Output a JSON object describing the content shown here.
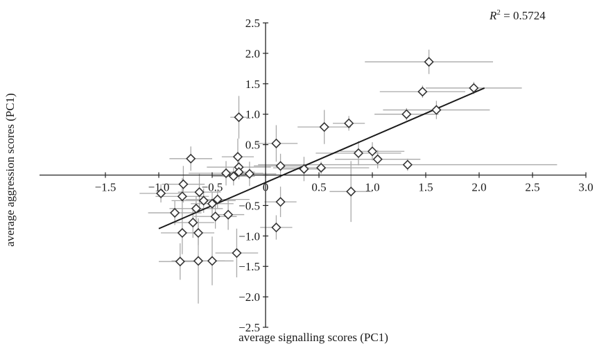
{
  "chart_data": {
    "type": "scatter",
    "title": "",
    "xlabel": "average signalling scores (PC1)",
    "ylabel": "average aggression scores (PC1)",
    "xlim": [
      -1.5,
      3.0
    ],
    "ylim": [
      -2.5,
      2.5
    ],
    "x_ticks": [
      "−1.5",
      "−1.0",
      "−0.5",
      "0",
      "0.5",
      "1.0",
      "1.5",
      "2.0",
      "2.5",
      "3.0"
    ],
    "x_tick_values": [
      -1.5,
      -1.0,
      -0.5,
      0,
      0.5,
      1.0,
      1.5,
      2.0,
      2.5,
      3.0
    ],
    "y_ticks": [
      "2.5",
      "2.0",
      "1.5",
      "1.0",
      "0.5",
      "0",
      "−0.5",
      "−1.0",
      "−1.5",
      "−2.0",
      "−2.5"
    ],
    "y_tick_values": [
      2.5,
      2.0,
      1.5,
      1.0,
      0.5,
      0,
      -0.5,
      -1.0,
      -1.5,
      -2.0,
      -2.5
    ],
    "r2_label": "R",
    "r2_exp": "2",
    "r2_text": " = 0.5724",
    "trendline": {
      "x": [
        -1.0,
        2.05
      ],
      "y": [
        -0.88,
        1.43
      ]
    },
    "marker": "open-diamond",
    "grid": false,
    "legend": "none",
    "points": [
      {
        "x": 1.53,
        "y": 1.86,
        "xerr": 0.6,
        "yerr": 0.2
      },
      {
        "x": 1.95,
        "y": 1.43,
        "xerr": 0.45,
        "yerr": 0.1
      },
      {
        "x": 1.47,
        "y": 1.37,
        "xerr": 0.4,
        "yerr": 0.1
      },
      {
        "x": 1.6,
        "y": 1.07,
        "xerr": 0.5,
        "yerr": 0.15
      },
      {
        "x": 1.32,
        "y": 1.0,
        "xerr": 0.3,
        "yerr": 0.1
      },
      {
        "x": 1.33,
        "y": 0.17,
        "xerr": 1.4,
        "yerr": 0.1
      },
      {
        "x": 0.78,
        "y": 0.85,
        "xerr": 0.15,
        "yerr": 0.12
      },
      {
        "x": 0.55,
        "y": 0.79,
        "xerr": 0.25,
        "yerr": 0.28
      },
      {
        "x": 0.87,
        "y": 0.36,
        "xerr": 0.4,
        "yerr": 0.2
      },
      {
        "x": 1.0,
        "y": 0.39,
        "xerr": 0.3,
        "yerr": 0.15
      },
      {
        "x": 1.05,
        "y": 0.26,
        "xerr": 0.4,
        "yerr": 0.15
      },
      {
        "x": 0.52,
        "y": 0.12,
        "xerr": 0.45,
        "yerr": 0.1
      },
      {
        "x": 0.36,
        "y": 0.1,
        "xerr": 0.2,
        "yerr": 0.2
      },
      {
        "x": 0.8,
        "y": -0.27,
        "xerr": 0.2,
        "yerr": 0.5
      },
      {
        "x": 0.1,
        "y": 0.52,
        "xerr": 0.2,
        "yerr": 0.3
      },
      {
        "x": 0.14,
        "y": 0.15,
        "xerr": 0.25,
        "yerr": 0.2
      },
      {
        "x": 0.14,
        "y": -0.44,
        "xerr": 0.15,
        "yerr": 0.25
      },
      {
        "x": 0.1,
        "y": -0.86,
        "xerr": 0.15,
        "yerr": 0.2
      },
      {
        "x": -0.25,
        "y": 0.95,
        "xerr": 0.08,
        "yerr": 0.35
      },
      {
        "x": -0.26,
        "y": 0.3,
        "xerr": 0.15,
        "yerr": 0.3
      },
      {
        "x": -0.25,
        "y": 0.13,
        "xerr": 0.3,
        "yerr": 0.2
      },
      {
        "x": -0.15,
        "y": 0.02,
        "xerr": 0.25,
        "yerr": 0.2
      },
      {
        "x": -0.25,
        "y": 0.05,
        "xerr": 0.15,
        "yerr": 0.1
      },
      {
        "x": -0.3,
        "y": -0.02,
        "xerr": 0.2,
        "yerr": 0.15
      },
      {
        "x": -0.37,
        "y": 0.03,
        "xerr": 0.35,
        "yerr": 0.2
      },
      {
        "x": -0.7,
        "y": 0.27,
        "xerr": 0.2,
        "yerr": 0.2
      },
      {
        "x": -0.77,
        "y": -0.15,
        "xerr": 0.2,
        "yerr": 0.3
      },
      {
        "x": -0.78,
        "y": -0.35,
        "xerr": 0.25,
        "yerr": 0.3
      },
      {
        "x": -0.98,
        "y": -0.3,
        "xerr": 0.2,
        "yerr": 0.15
      },
      {
        "x": -0.85,
        "y": -0.62,
        "xerr": 0.25,
        "yerr": 0.2
      },
      {
        "x": -0.65,
        "y": -0.55,
        "xerr": 0.25,
        "yerr": 0.2
      },
      {
        "x": -0.62,
        "y": -0.28,
        "xerr": 0.2,
        "yerr": 0.3
      },
      {
        "x": -0.58,
        "y": -0.42,
        "xerr": 0.3,
        "yerr": 0.2
      },
      {
        "x": -0.5,
        "y": -0.47,
        "xerr": 0.2,
        "yerr": 0.2
      },
      {
        "x": -0.45,
        "y": -0.4,
        "xerr": 0.3,
        "yerr": 0.15
      },
      {
        "x": -0.68,
        "y": -0.78,
        "xerr": 0.2,
        "yerr": 0.25
      },
      {
        "x": -0.78,
        "y": -0.95,
        "xerr": 0.2,
        "yerr": 0.35
      },
      {
        "x": -0.63,
        "y": -0.95,
        "xerr": 0.15,
        "yerr": 0.2
      },
      {
        "x": -0.47,
        "y": -0.68,
        "xerr": 0.2,
        "yerr": 0.2
      },
      {
        "x": -0.35,
        "y": -0.65,
        "xerr": 0.15,
        "yerr": 0.25
      },
      {
        "x": -0.27,
        "y": -1.28,
        "xerr": 0.2,
        "yerr": 0.4
      },
      {
        "x": -0.8,
        "y": -1.42,
        "xerr": 0.2,
        "yerr": 0.3
      },
      {
        "x": -0.63,
        "y": -1.41,
        "xerr": 0.25,
        "yerr": 0.7
      },
      {
        "x": -0.5,
        "y": -1.41,
        "xerr": 0.2,
        "yerr": 0.4
      }
    ]
  }
}
